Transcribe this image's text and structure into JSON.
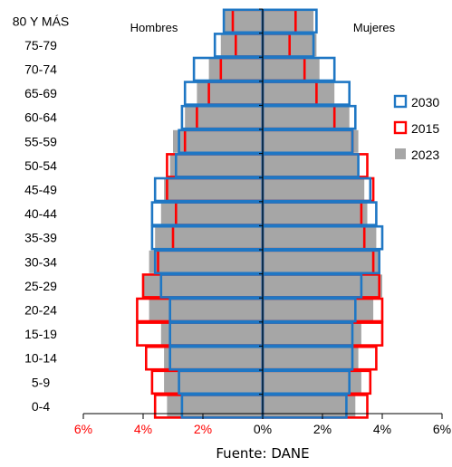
{
  "chart_data": {
    "type": "bar",
    "orientation": "horizontal-population-pyramid",
    "categories": [
      "80 Y MÁS",
      "75-79",
      "70-74",
      "65-69",
      "60-64",
      "55-59",
      "50-54",
      "45-49",
      "40-44",
      "35-39",
      "30-34",
      "25-29",
      "20-24",
      "15-19",
      "10-14",
      "5-9",
      "0-4"
    ],
    "side_labels": {
      "left": "Hombres",
      "right": "Mujeres"
    },
    "series": [
      {
        "name": "2023",
        "color": "#a6a6a6",
        "style": "filled",
        "hombres": [
          1.3,
          1.4,
          1.8,
          2.2,
          2.6,
          3.0,
          3.1,
          3.3,
          3.4,
          3.6,
          3.8,
          4.0,
          3.8,
          3.4,
          3.3,
          3.3,
          3.2
        ],
        "mujeres": [
          1.7,
          1.8,
          1.9,
          2.4,
          2.9,
          3.2,
          3.2,
          3.4,
          3.5,
          3.8,
          3.9,
          4.0,
          3.7,
          3.3,
          3.2,
          3.3,
          3.1
        ]
      },
      {
        "name": "2015",
        "color": "#ff0000",
        "style": "outline",
        "hombres": [
          1.0,
          0.9,
          1.4,
          1.8,
          2.2,
          2.6,
          3.2,
          3.2,
          2.9,
          3.0,
          3.5,
          4.0,
          4.2,
          4.2,
          3.9,
          3.7,
          3.6
        ],
        "mujeres": [
          1.1,
          0.9,
          1.4,
          1.8,
          2.4,
          3.0,
          3.5,
          3.7,
          3.3,
          3.4,
          3.7,
          3.9,
          4.0,
          4.0,
          3.8,
          3.6,
          3.5
        ]
      },
      {
        "name": "2030",
        "color": "#1f77c4",
        "style": "outline",
        "hombres": [
          1.3,
          1.6,
          2.3,
          2.6,
          2.7,
          2.8,
          2.9,
          3.6,
          3.7,
          3.7,
          3.6,
          3.4,
          3.1,
          3.1,
          3.1,
          2.8,
          2.7
        ],
        "mujeres": [
          1.8,
          1.7,
          2.4,
          2.9,
          3.1,
          3.0,
          3.2,
          3.6,
          3.8,
          4.0,
          3.9,
          3.3,
          3.1,
          3.0,
          3.0,
          2.9,
          2.8
        ]
      }
    ],
    "x_ticks": [
      "6%",
      "4%",
      "2%",
      "0%",
      "2%",
      "4%",
      "6%"
    ],
    "x_tick_values": [
      -6,
      -4,
      -2,
      0,
      2,
      4,
      6
    ],
    "xlim": [
      -6,
      6
    ],
    "legend_order": [
      "2030",
      "2015",
      "2023"
    ],
    "legend_position": "right",
    "grid": false,
    "source": "Fuente: DANE"
  }
}
